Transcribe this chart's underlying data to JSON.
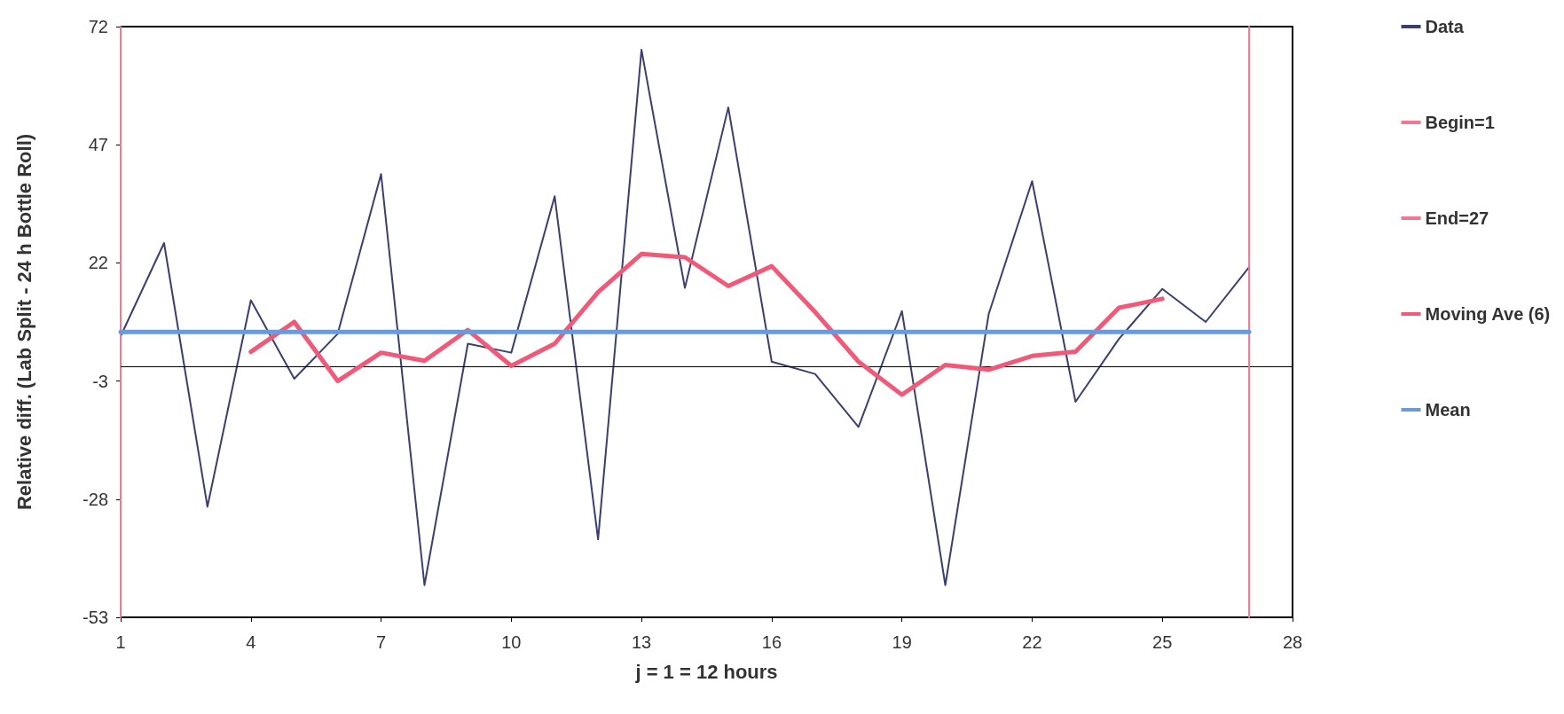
{
  "chart_data": {
    "type": "line",
    "xlabel": "j = 1 = 12 hours",
    "ylabel": "Relative diff. (Lab Split - 24 h Bottle Roll)",
    "xlim": [
      1,
      28
    ],
    "xticks": [
      1,
      4,
      7,
      10,
      13,
      16,
      19,
      22,
      25,
      28
    ],
    "ylim": [
      -53,
      72
    ],
    "yticks": [
      -53,
      -28,
      -3,
      22,
      47,
      72
    ],
    "grid": false,
    "legend": "right",
    "marker": "none",
    "line_style": "solid",
    "ref_lines": [
      {
        "axis": "y",
        "value": 0,
        "color": "#000000"
      }
    ],
    "series": [
      {
        "name": "Data",
        "color": "#3a3f6e",
        "x": [
          1,
          2,
          3,
          4,
          5,
          6,
          7,
          8,
          9,
          10,
          11,
          12,
          13,
          14,
          15,
          16,
          17,
          18,
          19,
          20,
          21,
          22,
          23,
          24,
          25,
          26,
          27
        ],
        "values": [
          6.5,
          26.2,
          -29.6,
          14.1,
          -2.5,
          7.0,
          40.8,
          -46.2,
          4.9,
          3.0,
          36.1,
          -36.5,
          67.1,
          16.7,
          54.9,
          1.1,
          -1.5,
          -12.7,
          11.8,
          -46.2,
          11.2,
          39.3,
          -7.4,
          5.9,
          16.5,
          9.5,
          21.1
        ]
      },
      {
        "name": "Begin=1",
        "color": "#f07890",
        "x": [
          1,
          1
        ],
        "values": [
          -53,
          72
        ]
      },
      {
        "name": "End=27",
        "color": "#f07890",
        "x": [
          27,
          27
        ],
        "values": [
          -53,
          72
        ]
      },
      {
        "name": "Moving Ave (6)",
        "color": "#f05a78",
        "x": [
          4,
          5,
          6,
          7,
          8,
          9,
          10,
          11,
          12,
          13,
          14,
          15,
          16,
          17,
          18,
          19,
          20,
          21,
          22,
          23,
          24,
          25
        ],
        "values": [
          3.2,
          9.5,
          -3.0,
          3.0,
          1.3,
          7.8,
          0.2,
          4.9,
          15.8,
          23.9,
          23.2,
          17.1,
          21.3,
          11.6,
          1.1,
          -5.9,
          0.4,
          -0.6,
          2.3,
          3.2,
          12.5,
          14.4
        ]
      },
      {
        "name": "Mean",
        "color": "#6a9ad8",
        "x": [
          1,
          27
        ],
        "values": [
          7.4,
          7.4
        ]
      }
    ]
  }
}
